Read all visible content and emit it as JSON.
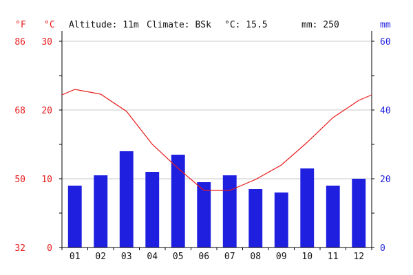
{
  "header": {
    "unit_f": "°F",
    "unit_c": "°C",
    "unit_mm": "mm",
    "altitude": "Altitude: 11m",
    "climate": "Climate: BSk",
    "temp_mean": "°C: 15.5",
    "precip_total": "mm: 250"
  },
  "colors": {
    "temperature": "#e8191a",
    "precipitation": "#1f1fe0",
    "grid": "#c8c8c8"
  },
  "chart_data": {
    "type": "bar",
    "title": "",
    "categories": [
      "01",
      "02",
      "03",
      "04",
      "05",
      "06",
      "07",
      "08",
      "09",
      "10",
      "11",
      "12"
    ],
    "series": [
      {
        "kind": "bar",
        "axis": "right",
        "unit": "mm",
        "values": [
          18,
          21,
          28,
          22,
          27,
          19,
          21,
          17,
          16,
          23,
          18,
          20
        ]
      },
      {
        "kind": "line",
        "axis": "left",
        "unit": "°C",
        "values": [
          23.0,
          22.3,
          19.8,
          15.0,
          11.5,
          8.3,
          8.3,
          9.9,
          12.0,
          15.3,
          18.9,
          21.4
        ]
      }
    ],
    "left_axis": {
      "unit": "°C",
      "ylim": [
        0,
        30
      ],
      "ticks": [
        0,
        10,
        20,
        30
      ]
    },
    "far_left_axis": {
      "unit": "°F",
      "ticks": [
        32,
        50,
        68,
        86
      ]
    },
    "right_axis": {
      "unit": "mm",
      "ylim": [
        0,
        60
      ],
      "ticks": [
        0,
        20,
        40,
        60
      ]
    },
    "grid": true,
    "legend": "none"
  }
}
